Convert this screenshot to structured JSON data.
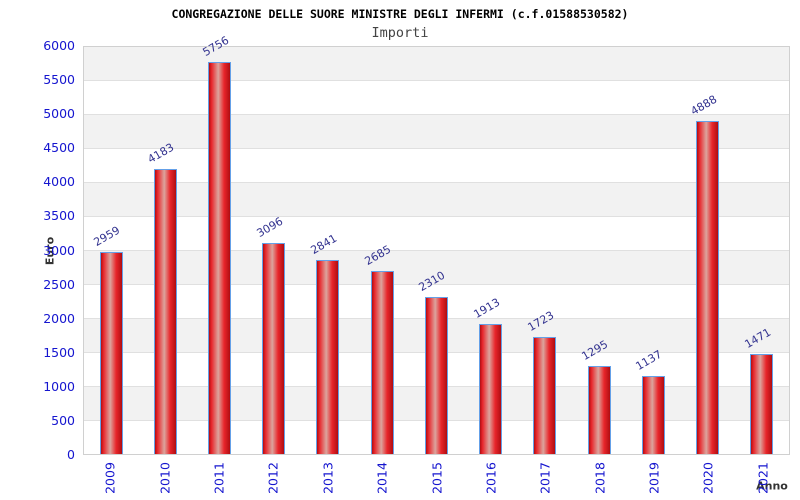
{
  "chart_data": {
    "type": "bar",
    "title": "CONGREGAZIONE DELLE SUORE MINISTRE DEGLI INFERMI (c.f.01588530582)",
    "subtitle": "Importi",
    "xlabel": "Anno",
    "ylabel": "Euro",
    "categories": [
      "2009",
      "2010",
      "2011",
      "2012",
      "2013",
      "2014",
      "2015",
      "2016",
      "2017",
      "2018",
      "2019",
      "2020",
      "2021"
    ],
    "values": [
      2959,
      4183,
      5756,
      3096,
      2841,
      2685,
      2310,
      1913,
      1723,
      1295,
      1137,
      4888,
      1471
    ],
    "data_labels": [
      "2959",
      "4183",
      "5756",
      "3096",
      "2841",
      "2685",
      "2310",
      "1913",
      "1723",
      "1295",
      "1137",
      "4888",
      "1471"
    ],
    "ylim": [
      0,
      6000
    ],
    "ytick_step": 500,
    "yticks": [
      "6000",
      "5500",
      "5000",
      "4500",
      "4000",
      "3500",
      "3000",
      "2500",
      "2000",
      "1500",
      "1000",
      "500",
      "0"
    ],
    "grid": "horizontal gridlines every 500 with alternating gray/white bands, top band gray",
    "legend": "none",
    "bar_label_rotation_deg": -30,
    "xtick_rotation_deg": -90,
    "colors": {
      "title": "#000000",
      "subtitle": "#444444",
      "tick_label": "#1515cf",
      "data_label": "#32328f",
      "axis_title": "#333333",
      "band_gray": "#f2f2f2",
      "band_white": "#ffffff",
      "gridline": "#e0e0e0",
      "plot_border": "#d0d0d0",
      "bar_border": "#64a0e8",
      "bar_dark": "#b00d12",
      "bar_main": "#e8262b",
      "bar_highlight": "#dca49d"
    }
  }
}
